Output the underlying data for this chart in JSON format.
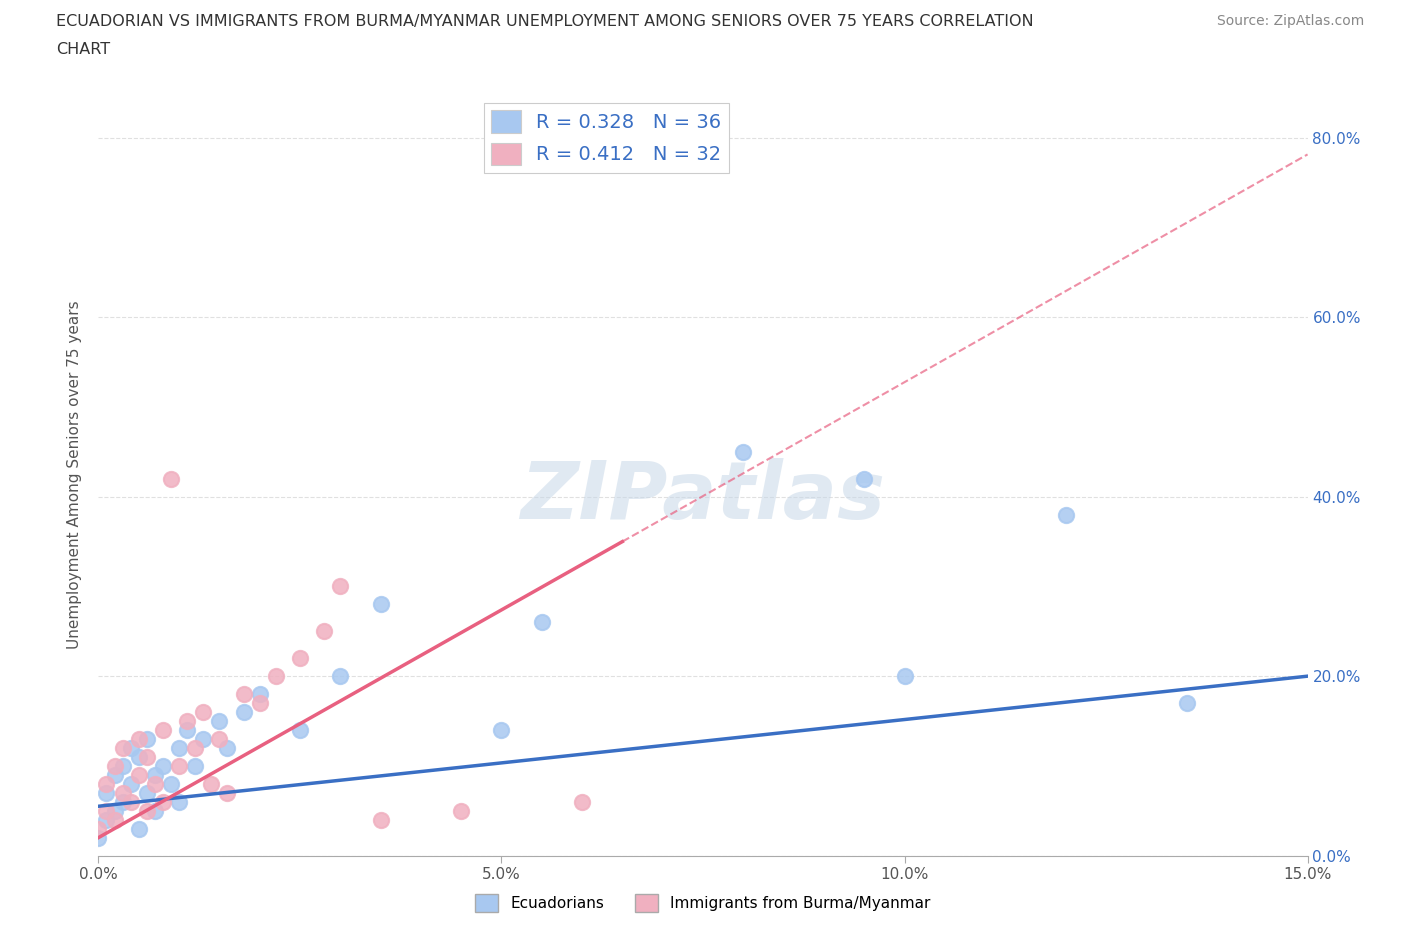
{
  "title_line1": "ECUADORIAN VS IMMIGRANTS FROM BURMA/MYANMAR UNEMPLOYMENT AMONG SENIORS OVER 75 YEARS CORRELATION",
  "title_line2": "CHART",
  "source": "Source: ZipAtlas.com",
  "ylabel": "Unemployment Among Seniors over 75 years",
  "xlim": [
    0.0,
    0.15
  ],
  "ylim": [
    0.0,
    0.85
  ],
  "xticks": [
    0.0,
    0.05,
    0.1,
    0.15
  ],
  "xtick_labels": [
    "0.0%",
    "5.0%",
    "10.0%",
    "15.0%"
  ],
  "yticks": [
    0.0,
    0.2,
    0.4,
    0.6,
    0.8
  ],
  "ytick_labels": [
    "0.0%",
    "20.0%",
    "40.0%",
    "60.0%",
    "80.0%"
  ],
  "watermark": "ZIPatlas",
  "blue_R": 0.328,
  "blue_N": 36,
  "pink_R": 0.412,
  "pink_N": 32,
  "blue_scatter_x": [
    0.0,
    0.001,
    0.001,
    0.002,
    0.002,
    0.003,
    0.003,
    0.004,
    0.004,
    0.005,
    0.005,
    0.006,
    0.006,
    0.007,
    0.007,
    0.008,
    0.009,
    0.01,
    0.01,
    0.011,
    0.012,
    0.013,
    0.015,
    0.016,
    0.018,
    0.02,
    0.025,
    0.03,
    0.035,
    0.05,
    0.055,
    0.08,
    0.095,
    0.1,
    0.12,
    0.135
  ],
  "blue_scatter_y": [
    0.02,
    0.04,
    0.07,
    0.05,
    0.09,
    0.06,
    0.1,
    0.08,
    0.12,
    0.03,
    0.11,
    0.07,
    0.13,
    0.05,
    0.09,
    0.1,
    0.08,
    0.12,
    0.06,
    0.14,
    0.1,
    0.13,
    0.15,
    0.12,
    0.16,
    0.18,
    0.14,
    0.2,
    0.28,
    0.14,
    0.26,
    0.45,
    0.42,
    0.2,
    0.38,
    0.17
  ],
  "pink_scatter_x": [
    0.0,
    0.001,
    0.001,
    0.002,
    0.002,
    0.003,
    0.003,
    0.004,
    0.005,
    0.005,
    0.006,
    0.006,
    0.007,
    0.008,
    0.008,
    0.009,
    0.01,
    0.011,
    0.012,
    0.013,
    0.014,
    0.015,
    0.016,
    0.018,
    0.02,
    0.022,
    0.025,
    0.028,
    0.03,
    0.035,
    0.045,
    0.06
  ],
  "pink_scatter_y": [
    0.03,
    0.05,
    0.08,
    0.04,
    0.1,
    0.07,
    0.12,
    0.06,
    0.09,
    0.13,
    0.05,
    0.11,
    0.08,
    0.14,
    0.06,
    0.42,
    0.1,
    0.15,
    0.12,
    0.16,
    0.08,
    0.13,
    0.07,
    0.18,
    0.17,
    0.2,
    0.22,
    0.25,
    0.3,
    0.04,
    0.05,
    0.06
  ],
  "blue_line_color": "#3a6fc4",
  "pink_line_color": "#e86080",
  "blue_scatter_color": "#a8c8f0",
  "pink_scatter_color": "#f0b0c0",
  "blue_line_intercept": 0.055,
  "blue_line_slope": 1.0,
  "pink_line_intercept": 0.02,
  "pink_line_slope": 5.2,
  "pink_line_solid_end": 0.065,
  "legend_label_blue": "Ecuadorians",
  "legend_label_pink": "Immigrants from Burma/Myanmar",
  "grid_color": "#e0e0e0",
  "ref_line_y": 0.2,
  "title_color": "#333333",
  "axis_label_color": "#555555"
}
